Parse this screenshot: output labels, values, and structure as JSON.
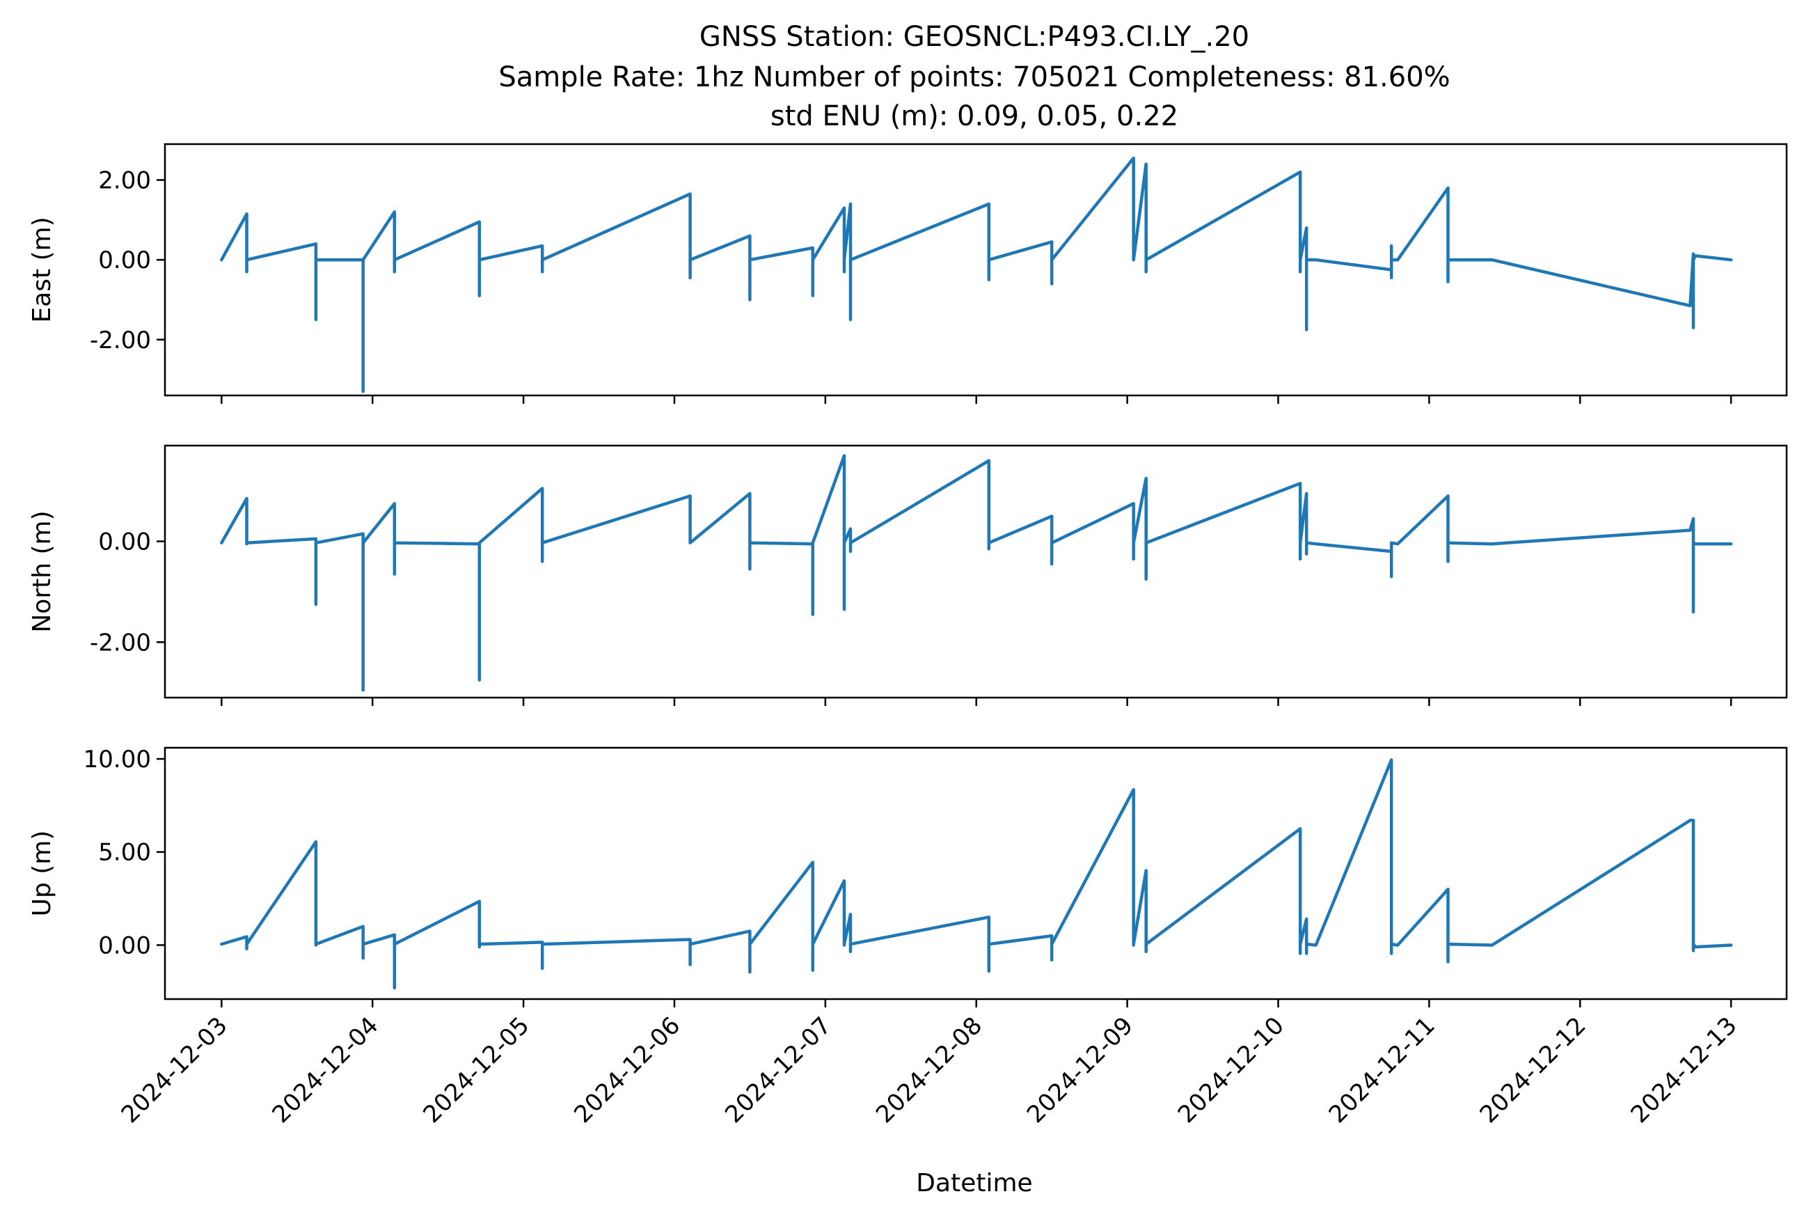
{
  "figure": {
    "title_lines": [
      "GNSS Station: GEOSNCL:P493.CI.LY_.20",
      "Sample Rate: 1hz   Number of points: 705021    Completeness:  81.60%",
      "std ENU (m):  0.09, 0.05, 0.22"
    ]
  },
  "chart_data": {
    "type": "line",
    "title": "GNSS Station: GEOSNCL:P493.CI.LY_.20",
    "subtitle": "Sample Rate: 1hz   Number of points: 705021    Completeness:  81.60% | std ENU (m):  0.09, 0.05, 0.22",
    "xlabel": "Datetime",
    "color": "#1f77b4",
    "grid": false,
    "legend": "none",
    "shared_x": true,
    "xlim": [
      "2024-12-02T15:00",
      "2024-12-13T08:50"
    ],
    "x_ticks": [
      "2024-12-03",
      "2024-12-04",
      "2024-12-05",
      "2024-12-06",
      "2024-12-07",
      "2024-12-08",
      "2024-12-09",
      "2024-12-10",
      "2024-12-11",
      "2024-12-12",
      "2024-12-13"
    ],
    "panels": [
      {
        "ylabel": "East (m)",
        "ylim": [
          -3.4,
          2.9
        ],
        "y_ticks": [
          2.0,
          0.0,
          -2.0
        ],
        "y_tick_labels": [
          "2.00",
          "0.00",
          "-2.00"
        ],
        "baseline": [
          [
            "2024-12-03T00:00",
            0.0
          ],
          [
            "2024-12-10T06:00",
            0.0
          ],
          [
            "2024-12-10T18:00",
            -0.25
          ],
          [
            "2024-12-10T19:00",
            0.0
          ],
          [
            "2024-12-11T10:00",
            0.0
          ],
          [
            "2024-12-12T17:30",
            -1.15
          ],
          [
            "2024-12-12T18:20",
            0.1
          ],
          [
            "2024-12-13T00:00",
            0.0
          ]
        ],
        "spikes": [
          [
            "2024-12-03T04:00",
            1.15,
            -0.3
          ],
          [
            "2024-12-03T15:00",
            0.4,
            -1.5
          ],
          [
            "2024-12-03T22:30",
            0.0,
            -3.3
          ],
          [
            "2024-12-04T03:30",
            1.2,
            -0.3
          ],
          [
            "2024-12-04T17:00",
            0.95,
            -0.9
          ],
          [
            "2024-12-05T03:00",
            0.35,
            -0.3
          ],
          [
            "2024-12-06T02:30",
            1.65,
            -0.45
          ],
          [
            "2024-12-06T12:00",
            0.6,
            -1.0
          ],
          [
            "2024-12-06T22:00",
            0.3,
            -0.9
          ],
          [
            "2024-12-07T03:00",
            1.3,
            -0.3
          ],
          [
            "2024-12-07T04:00",
            1.4,
            -1.5
          ],
          [
            "2024-12-08T02:00",
            1.4,
            -0.5
          ],
          [
            "2024-12-08T12:00",
            0.45,
            -0.6
          ],
          [
            "2024-12-09T01:00",
            2.55,
            0.0
          ],
          [
            "2024-12-09T03:00",
            2.4,
            -0.3
          ],
          [
            "2024-12-10T03:30",
            2.2,
            -0.3
          ],
          [
            "2024-12-10T04:30",
            0.8,
            -1.75
          ],
          [
            "2024-12-10T18:00",
            0.35,
            -0.45
          ],
          [
            "2024-12-11T03:00",
            1.8,
            -0.55
          ],
          [
            "2024-12-12T18:00",
            0.15,
            -1.7
          ]
        ]
      },
      {
        "ylabel": "North (m)",
        "ylim": [
          -3.1,
          1.9
        ],
        "y_ticks": [
          0.0,
          -2.0
        ],
        "y_tick_labels": [
          "0.00",
          "-2.00"
        ],
        "baseline": [
          [
            "2024-12-03T00:00",
            -0.03
          ],
          [
            "2024-12-10T06:00",
            -0.05
          ],
          [
            "2024-12-10T18:00",
            -0.2
          ],
          [
            "2024-12-10T19:00",
            -0.05
          ],
          [
            "2024-12-11T10:00",
            -0.05
          ],
          [
            "2024-12-12T17:30",
            0.22
          ],
          [
            "2024-12-12T18:20",
            -0.05
          ],
          [
            "2024-12-13T00:00",
            -0.05
          ]
        ],
        "spikes": [
          [
            "2024-12-03T04:00",
            0.85,
            -0.05
          ],
          [
            "2024-12-03T15:00",
            0.05,
            -1.25
          ],
          [
            "2024-12-03T22:30",
            0.15,
            -2.95
          ],
          [
            "2024-12-04T03:30",
            0.75,
            -0.65
          ],
          [
            "2024-12-04T17:00",
            -0.05,
            -2.75
          ],
          [
            "2024-12-05T03:00",
            1.05,
            -0.4
          ],
          [
            "2024-12-06T02:30",
            0.9,
            0.0
          ],
          [
            "2024-12-06T12:00",
            0.95,
            -0.55
          ],
          [
            "2024-12-06T22:00",
            -0.05,
            -1.45
          ],
          [
            "2024-12-07T03:00",
            1.7,
            -1.35
          ],
          [
            "2024-12-07T04:00",
            0.25,
            -0.2
          ],
          [
            "2024-12-08T02:00",
            1.6,
            -0.15
          ],
          [
            "2024-12-08T12:00",
            0.5,
            -0.45
          ],
          [
            "2024-12-09T01:00",
            0.75,
            -0.35
          ],
          [
            "2024-12-09T03:00",
            1.25,
            -0.75
          ],
          [
            "2024-12-10T03:30",
            1.15,
            -0.35
          ],
          [
            "2024-12-10T04:30",
            0.95,
            -0.25
          ],
          [
            "2024-12-10T18:00",
            -0.05,
            -0.7
          ],
          [
            "2024-12-11T03:00",
            0.9,
            -0.4
          ],
          [
            "2024-12-12T18:00",
            0.45,
            -1.4
          ]
        ]
      },
      {
        "ylabel": "Up (m)",
        "ylim": [
          -2.9,
          10.6
        ],
        "y_ticks": [
          10.0,
          5.0,
          0.0
        ],
        "y_tick_labels": [
          "10.00",
          "5.00",
          "0.00"
        ],
        "baseline": [
          [
            "2024-12-03T00:00",
            0.05
          ],
          [
            "2024-12-10T06:00",
            0.0
          ],
          [
            "2024-12-10T18:00",
            9.95
          ],
          [
            "2024-12-10T19:00",
            0.0
          ],
          [
            "2024-12-11T10:00",
            0.0
          ],
          [
            "2024-12-12T17:30",
            6.7
          ],
          [
            "2024-12-12T18:20",
            -0.1
          ],
          [
            "2024-12-13T00:00",
            0.0
          ]
        ],
        "spikes": [
          [
            "2024-12-03T04:00",
            0.45,
            -0.2
          ],
          [
            "2024-12-03T15:00",
            5.55,
            0.0
          ],
          [
            "2024-12-03T22:30",
            1.0,
            -0.7
          ],
          [
            "2024-12-04T03:30",
            0.55,
            -2.3
          ],
          [
            "2024-12-04T17:00",
            2.35,
            -0.1
          ],
          [
            "2024-12-05T03:00",
            0.15,
            -1.25
          ],
          [
            "2024-12-06T02:30",
            0.3,
            -1.05
          ],
          [
            "2024-12-06T12:00",
            0.75,
            -1.45
          ],
          [
            "2024-12-06T22:00",
            4.45,
            -1.35
          ],
          [
            "2024-12-07T03:00",
            3.45,
            0.0
          ],
          [
            "2024-12-07T04:00",
            1.65,
            -0.35
          ],
          [
            "2024-12-08T02:00",
            1.5,
            -1.4
          ],
          [
            "2024-12-08T12:00",
            0.5,
            -0.8
          ],
          [
            "2024-12-09T01:00",
            8.35,
            0.0
          ],
          [
            "2024-12-09T03:00",
            4.0,
            -0.35
          ],
          [
            "2024-12-10T03:30",
            6.25,
            -0.45
          ],
          [
            "2024-12-10T04:30",
            1.4,
            -0.45
          ],
          [
            "2024-12-10T18:00",
            9.95,
            -0.45
          ],
          [
            "2024-12-11T03:00",
            3.0,
            -0.9
          ],
          [
            "2024-12-12T18:00",
            6.7,
            -0.3
          ]
        ]
      }
    ]
  }
}
